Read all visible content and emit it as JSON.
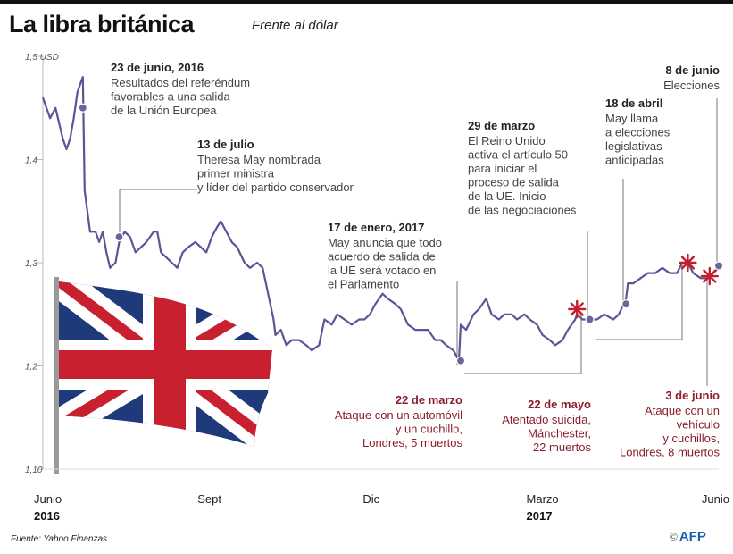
{
  "header": {
    "title": "La libra británica",
    "subtitle": "Frente al dólar"
  },
  "footer": {
    "source": "Fuente: Yahoo Finanzas",
    "logo_copyright": "©",
    "logo_text": "AFP"
  },
  "colors": {
    "line": "#5b5596",
    "marker_point": "#6b6699",
    "marker_star": "#c41e2c",
    "red_text": "#8b1d2c",
    "leader": "#777777"
  },
  "chart_data": {
    "type": "line",
    "title": "La libra británica",
    "subtitle": "Frente al dólar",
    "ylabel_unit": "USD",
    "ylim": [
      1.1,
      1.5
    ],
    "yticks": [
      "1,5 USD",
      "1,4",
      "1,3",
      "1,2",
      "1,10"
    ],
    "ytick_values": [
      1.5,
      1.4,
      1.3,
      1.2,
      1.1
    ],
    "xlim": [
      "2016-06-01",
      "2017-06-08"
    ],
    "xticks": [
      {
        "label": "Junio",
        "year": "2016",
        "date": "2016-06-01"
      },
      {
        "label": "Sept",
        "year": "",
        "date": "2016-09-01"
      },
      {
        "label": "Dic",
        "year": "",
        "date": "2016-12-01"
      },
      {
        "label": "Marzo",
        "year": "2017",
        "date": "2017-03-01"
      },
      {
        "label": "Junio",
        "year": "",
        "date": "2017-06-01"
      }
    ],
    "series": [
      {
        "values": [
          [
            "2016-06-01",
            1.46
          ],
          [
            "2016-06-05",
            1.44
          ],
          [
            "2016-06-08",
            1.45
          ],
          [
            "2016-06-12",
            1.42
          ],
          [
            "2016-06-14",
            1.41
          ],
          [
            "2016-06-16",
            1.42
          ],
          [
            "2016-06-18",
            1.44
          ],
          [
            "2016-06-20",
            1.465
          ],
          [
            "2016-06-22",
            1.475
          ],
          [
            "2016-06-23",
            1.48
          ],
          [
            "2016-06-24",
            1.37
          ],
          [
            "2016-06-27",
            1.33
          ],
          [
            "2016-06-30",
            1.33
          ],
          [
            "2016-07-02",
            1.32
          ],
          [
            "2016-07-04",
            1.33
          ],
          [
            "2016-07-06",
            1.31
          ],
          [
            "2016-07-08",
            1.295
          ],
          [
            "2016-07-11",
            1.3
          ],
          [
            "2016-07-13",
            1.32
          ],
          [
            "2016-07-16",
            1.33
          ],
          [
            "2016-07-19",
            1.325
          ],
          [
            "2016-07-22",
            1.31
          ],
          [
            "2016-07-25",
            1.315
          ],
          [
            "2016-07-28",
            1.32
          ],
          [
            "2016-08-01",
            1.33
          ],
          [
            "2016-08-03",
            1.33
          ],
          [
            "2016-08-05",
            1.31
          ],
          [
            "2016-08-08",
            1.305
          ],
          [
            "2016-08-11",
            1.3
          ],
          [
            "2016-08-14",
            1.295
          ],
          [
            "2016-08-17",
            1.31
          ],
          [
            "2016-08-20",
            1.315
          ],
          [
            "2016-08-24",
            1.32
          ],
          [
            "2016-08-27",
            1.315
          ],
          [
            "2016-08-30",
            1.31
          ],
          [
            "2016-09-02",
            1.325
          ],
          [
            "2016-09-05",
            1.335
          ],
          [
            "2016-09-07",
            1.34
          ],
          [
            "2016-09-10",
            1.33
          ],
          [
            "2016-09-13",
            1.32
          ],
          [
            "2016-09-16",
            1.315
          ],
          [
            "2016-09-20",
            1.3
          ],
          [
            "2016-09-23",
            1.295
          ],
          [
            "2016-09-27",
            1.3
          ],
          [
            "2016-09-30",
            1.295
          ],
          [
            "2016-10-03",
            1.27
          ],
          [
            "2016-10-06",
            1.245
          ],
          [
            "2016-10-07",
            1.23
          ],
          [
            "2016-10-10",
            1.235
          ],
          [
            "2016-10-13",
            1.22
          ],
          [
            "2016-10-16",
            1.225
          ],
          [
            "2016-10-20",
            1.225
          ],
          [
            "2016-10-24",
            1.22
          ],
          [
            "2016-10-27",
            1.215
          ],
          [
            "2016-10-31",
            1.22
          ],
          [
            "2016-11-03",
            1.245
          ],
          [
            "2016-11-07",
            1.24
          ],
          [
            "2016-11-10",
            1.25
          ],
          [
            "2016-11-14",
            1.245
          ],
          [
            "2016-11-18",
            1.24
          ],
          [
            "2016-11-22",
            1.245
          ],
          [
            "2016-11-25",
            1.245
          ],
          [
            "2016-11-28",
            1.25
          ],
          [
            "2016-12-01",
            1.26
          ],
          [
            "2016-12-05",
            1.27
          ],
          [
            "2016-12-08",
            1.265
          ],
          [
            "2016-12-12",
            1.26
          ],
          [
            "2016-12-15",
            1.255
          ],
          [
            "2016-12-19",
            1.24
          ],
          [
            "2016-12-23",
            1.235
          ],
          [
            "2016-12-27",
            1.235
          ],
          [
            "2016-12-30",
            1.235
          ],
          [
            "2017-01-03",
            1.225
          ],
          [
            "2017-01-06",
            1.225
          ],
          [
            "2017-01-09",
            1.22
          ],
          [
            "2017-01-13",
            1.215
          ],
          [
            "2017-01-16",
            1.205
          ],
          [
            "2017-01-17",
            1.24
          ],
          [
            "2017-01-20",
            1.235
          ],
          [
            "2017-01-24",
            1.25
          ],
          [
            "2017-01-27",
            1.255
          ],
          [
            "2017-01-31",
            1.265
          ],
          [
            "2017-02-03",
            1.25
          ],
          [
            "2017-02-07",
            1.245
          ],
          [
            "2017-02-10",
            1.25
          ],
          [
            "2017-02-14",
            1.25
          ],
          [
            "2017-02-17",
            1.245
          ],
          [
            "2017-02-21",
            1.25
          ],
          [
            "2017-02-24",
            1.245
          ],
          [
            "2017-02-28",
            1.24
          ],
          [
            "2017-03-03",
            1.23
          ],
          [
            "2017-03-07",
            1.225
          ],
          [
            "2017-03-10",
            1.22
          ],
          [
            "2017-03-14",
            1.225
          ],
          [
            "2017-03-17",
            1.235
          ],
          [
            "2017-03-21",
            1.245
          ],
          [
            "2017-03-22",
            1.25
          ],
          [
            "2017-03-25",
            1.245
          ],
          [
            "2017-03-29",
            1.245
          ],
          [
            "2017-04-02",
            1.245
          ],
          [
            "2017-04-06",
            1.25
          ],
          [
            "2017-04-11",
            1.245
          ],
          [
            "2017-04-14",
            1.25
          ],
          [
            "2017-04-18",
            1.265
          ],
          [
            "2017-04-19",
            1.28
          ],
          [
            "2017-04-22",
            1.28
          ],
          [
            "2017-04-26",
            1.285
          ],
          [
            "2017-04-30",
            1.29
          ],
          [
            "2017-05-04",
            1.29
          ],
          [
            "2017-05-08",
            1.295
          ],
          [
            "2017-05-12",
            1.29
          ],
          [
            "2017-05-16",
            1.29
          ],
          [
            "2017-05-19",
            1.3
          ],
          [
            "2017-05-22",
            1.3
          ],
          [
            "2017-05-25",
            1.29
          ],
          [
            "2017-05-29",
            1.285
          ],
          [
            "2017-06-01",
            1.285
          ],
          [
            "2017-06-03",
            1.285
          ],
          [
            "2017-06-05",
            1.29
          ],
          [
            "2017-06-08",
            1.295
          ]
        ]
      }
    ],
    "markers": [
      {
        "kind": "point",
        "date": "2016-06-23",
        "y": 1.45,
        "label_title": "23 de junio, 2016",
        "label_lines": [
          "Resultados del referéndum",
          "favorables a una salida",
          "de la Unión Europea"
        ],
        "color": "dark"
      },
      {
        "kind": "point",
        "date": "2016-07-13",
        "y": 1.325,
        "label_title": "13 de julio",
        "label_lines": [
          "Theresa May nombrada",
          "primer ministra",
          "y líder del partido conservador"
        ],
        "color": "dark"
      },
      {
        "kind": "point",
        "date": "2017-01-17",
        "y": 1.205,
        "label_title": "17 de enero, 2017",
        "label_lines": [
          "May anuncia que todo",
          "acuerdo de salida de",
          "la UE será votado en",
          "el Parlamento"
        ],
        "color": "dark"
      },
      {
        "kind": "star",
        "date": "2017-03-22",
        "y": 1.255,
        "label_title": "22 de marzo",
        "label_lines": [
          "Ataque con un automóvil",
          "y un cuchillo,",
          "Londres, 5 muertos"
        ],
        "color": "red"
      },
      {
        "kind": "point",
        "date": "2017-03-29",
        "y": 1.245,
        "label_title": "29 de marzo",
        "label_lines": [
          "El Reino Unido",
          "activa el artículo 50",
          "para iniciar el",
          "proceso de salida",
          "de la UE. Inicio",
          "de las negociaciones"
        ],
        "color": "dark"
      },
      {
        "kind": "point",
        "date": "2017-04-18",
        "y": 1.26,
        "label_title": "18 de abril",
        "label_lines": [
          "May llama",
          "a elecciones",
          "legislativas",
          "anticipadas"
        ],
        "color": "dark"
      },
      {
        "kind": "star",
        "date": "2017-05-22",
        "y": 1.3,
        "label_title": "22 de mayo",
        "label_lines": [
          "Atentado suicida,",
          "Mánchester,",
          "22 muertos"
        ],
        "color": "red"
      },
      {
        "kind": "star",
        "date": "2017-06-03",
        "y": 1.287,
        "label_title": "3 de junio",
        "label_lines": [
          "Ataque con un",
          "vehículo",
          "y cuchillos,",
          "Londres, 8 muertos"
        ],
        "color": "red"
      },
      {
        "kind": "point",
        "date": "2017-06-08",
        "y": 1.297,
        "label_title": "8 de junio",
        "label_lines": [
          "Elecciones"
        ],
        "color": "dark"
      }
    ],
    "grid": false,
    "legend": "none"
  }
}
